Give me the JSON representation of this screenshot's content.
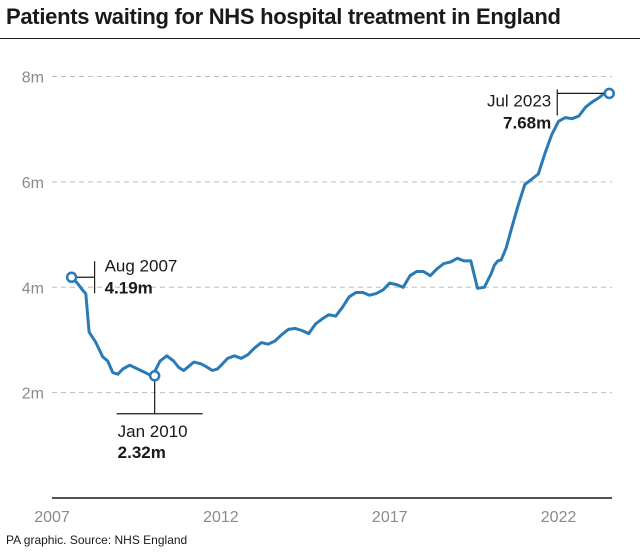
{
  "title": "Patients waiting for NHS hospital treatment in England",
  "source": "PA graphic. Source: NHS England",
  "colors": {
    "line": "#2a7ab5",
    "grid": "#bdbdbd",
    "axis": "#1a1a1a",
    "tick_text": "#8a8a8a",
    "text": "#1a1a1a"
  },
  "chart_data": {
    "type": "line",
    "title": "Patients waiting for NHS hospital treatment in England",
    "xlabel": "",
    "ylabel": "",
    "x_unit": "year",
    "y_unit": "millions",
    "xlim": [
      2007,
      2023.7
    ],
    "ylim": [
      0,
      8.2
    ],
    "grid": "horizontal dashed",
    "x_ticks": [
      {
        "value": 2007,
        "label": "2007"
      },
      {
        "value": 2012,
        "label": "2012"
      },
      {
        "value": 2017,
        "label": "2017"
      },
      {
        "value": 2022,
        "label": "2022"
      }
    ],
    "y_ticks": [
      {
        "value": 2,
        "label": "2m"
      },
      {
        "value": 4,
        "label": "4m"
      },
      {
        "value": 6,
        "label": "6m"
      },
      {
        "value": 8,
        "label": "8m"
      }
    ],
    "series": [
      {
        "x": [
          2007.58,
          2007.75,
          2007.9,
          2008.0,
          2008.1,
          2008.3,
          2008.5,
          2008.65,
          2008.8,
          2008.95,
          2009.1,
          2009.3,
          2009.5,
          2009.7,
          2009.85,
          2009.95,
          2010.04,
          2010.2,
          2010.4,
          2010.6,
          2010.75,
          2010.9,
          2011.05,
          2011.2,
          2011.4,
          2011.55,
          2011.75,
          2011.9,
          2012.05,
          2012.2,
          2012.4,
          2012.6,
          2012.8,
          2013.0,
          2013.2,
          2013.4,
          2013.6,
          2013.8,
          2014.0,
          2014.2,
          2014.4,
          2014.6,
          2014.8,
          2015.0,
          2015.2,
          2015.4,
          2015.6,
          2015.8,
          2016.0,
          2016.2,
          2016.4,
          2016.6,
          2016.8,
          2017.0,
          2017.2,
          2017.4,
          2017.6,
          2017.8,
          2018.0,
          2018.2,
          2018.4,
          2018.6,
          2018.8,
          2019.0,
          2019.2,
          2019.4,
          2019.6,
          2019.8,
          2020.0,
          2020.1,
          2020.2,
          2020.3,
          2020.45,
          2020.6,
          2020.8,
          2021.0,
          2021.2,
          2021.4,
          2021.6,
          2021.8,
          2022.0,
          2022.2,
          2022.4,
          2022.6,
          2022.8,
          2023.0,
          2023.2,
          2023.35,
          2023.5
        ],
        "y": [
          4.19,
          4.08,
          3.95,
          3.88,
          3.15,
          2.95,
          2.68,
          2.6,
          2.38,
          2.35,
          2.45,
          2.52,
          2.46,
          2.4,
          2.35,
          2.32,
          2.4,
          2.6,
          2.7,
          2.6,
          2.48,
          2.42,
          2.5,
          2.58,
          2.55,
          2.5,
          2.42,
          2.45,
          2.55,
          2.65,
          2.7,
          2.65,
          2.72,
          2.85,
          2.95,
          2.92,
          2.98,
          3.1,
          3.2,
          3.22,
          3.18,
          3.12,
          3.3,
          3.4,
          3.48,
          3.45,
          3.62,
          3.82,
          3.9,
          3.9,
          3.85,
          3.88,
          3.95,
          4.08,
          4.05,
          4.0,
          4.22,
          4.3,
          4.3,
          4.22,
          4.35,
          4.45,
          4.48,
          4.55,
          4.5,
          4.5,
          3.98,
          4.0,
          4.25,
          4.42,
          4.5,
          4.52,
          4.75,
          5.1,
          5.55,
          5.95,
          6.05,
          6.15,
          6.55,
          6.9,
          7.15,
          7.22,
          7.2,
          7.25,
          7.42,
          7.52,
          7.6,
          7.68,
          7.68
        ]
      }
    ],
    "annotations": [
      {
        "x": 2007.58,
        "y": 4.19,
        "date": "Aug 2007",
        "value": "4.19m",
        "side": "right"
      },
      {
        "x": 2010.04,
        "y": 2.32,
        "date": "Jan 2010",
        "value": "2.32m",
        "side": "below"
      },
      {
        "x": 2023.5,
        "y": 7.68,
        "date": "Jul 2023",
        "value": "7.68m",
        "side": "left"
      }
    ]
  }
}
